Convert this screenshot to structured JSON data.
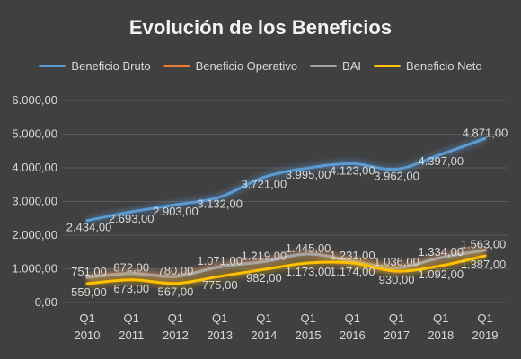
{
  "chart_data": {
    "type": "line",
    "title": "Evolución de los Beneficios",
    "categories": [
      "Q1 2010",
      "Q1 2011",
      "Q1 2012",
      "Q1 2013",
      "Q1 2014",
      "Q1 2015",
      "Q1 2016",
      "Q1 2017",
      "Q1 2018",
      "Q1 2019"
    ],
    "category_lines": [
      [
        "Q1",
        "2010"
      ],
      [
        "Q1",
        "2011"
      ],
      [
        "Q1",
        "2012"
      ],
      [
        "Q1",
        "2013"
      ],
      [
        "Q1",
        "2014"
      ],
      [
        "Q1",
        "2015"
      ],
      [
        "Q1",
        "2016"
      ],
      [
        "Q1",
        "2017"
      ],
      [
        "Q1",
        "2018"
      ],
      [
        "Q1",
        "2019"
      ]
    ],
    "ylim": [
      0,
      6000
    ],
    "yticks": [
      "0,00",
      "1.000,00",
      "2.000,00",
      "3.000,00",
      "4.000,00",
      "5.000,00",
      "6.000,00"
    ],
    "legend_position": "top",
    "grid": true,
    "series": [
      {
        "name": "Beneficio Bruto",
        "color": "#5b9bd5",
        "values": [
          2434,
          2693,
          2903,
          3132,
          3721,
          3995,
          4123,
          3962,
          4397,
          4871
        ],
        "labels": [
          "2.434,00",
          "2.693,00",
          "2.903,00",
          "3.132,00",
          "3.721,00",
          "3.995,00",
          "4.123,00",
          "3.962,00",
          "4.397,00",
          "4.871,00"
        ]
      },
      {
        "name": "Beneficio Operativo",
        "color": "#ed7d31",
        "values": [
          751,
          872,
          780,
          1071,
          1219,
          1445,
          1231,
          1036,
          1334,
          1563
        ],
        "labels": [
          "751,00",
          "872,00",
          "780,00",
          "1.071,00",
          "1.219,00",
          "1.445,00",
          "1.231,00",
          "1.036,00",
          "1.334,00",
          "1.563,00"
        ]
      },
      {
        "name": "BAI",
        "color": "#a5a5a5",
        "values": [
          740,
          860,
          770,
          1060,
          1210,
          1440,
          1220,
          1030,
          1330,
          1550
        ],
        "labels": [
          "",
          "",
          "",
          "",
          "",
          "",
          "",
          "",
          "",
          ""
        ]
      },
      {
        "name": "Beneficio Neto",
        "color": "#ffc000",
        "values": [
          559,
          673,
          567,
          775,
          982,
          1173,
          1174,
          930,
          1092,
          1387
        ],
        "labels": [
          "559,00",
          "673,00",
          "567,00",
          "775,00",
          "982,00",
          "1.173,00",
          "1.174,00",
          "930,00",
          "1.092,00",
          "1.387,00"
        ]
      }
    ]
  }
}
